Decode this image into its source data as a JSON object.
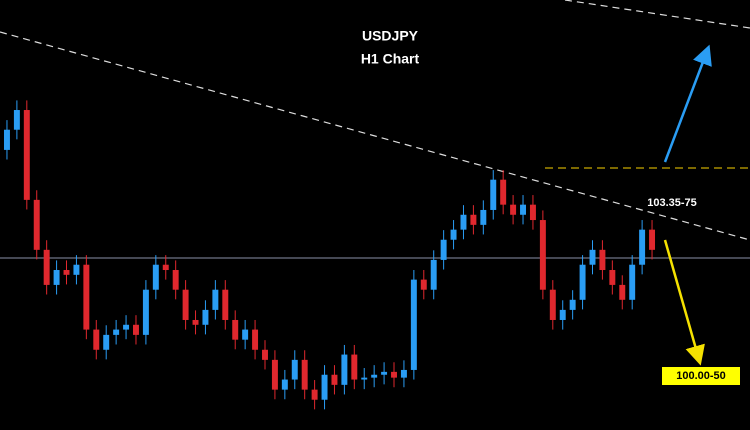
{
  "chart_data": {
    "type": "candlestick",
    "title": "USDJPY",
    "subtitle": "H1 Chart",
    "annotations": [
      "103.35-75",
      "100.00-50"
    ],
    "up_color": "#2a9df4",
    "down_color": "#e0282e",
    "ylim": [
      99.13,
      108.08
    ],
    "series": {
      "open": [
        104.96,
        105.38,
        105.79,
        103.92,
        102.88,
        102.15,
        102.46,
        102.36,
        102.57,
        101.22,
        100.8,
        101.11,
        101.22,
        101.32,
        101.11,
        102.05,
        102.57,
        102.46,
        102.05,
        101.42,
        101.32,
        101.63,
        102.05,
        101.42,
        101.01,
        101.22,
        100.8,
        100.59,
        99.97,
        100.18,
        100.59,
        99.97,
        99.76,
        100.28,
        100.07,
        100.7,
        100.18,
        100.22,
        100.28,
        100.34,
        100.22,
        100.38,
        102.26,
        102.05,
        102.67,
        103.09,
        103.3,
        103.61,
        103.4,
        103.71,
        104.34,
        103.82,
        103.61,
        103.82,
        103.5,
        102.05,
        101.42,
        101.63,
        101.84,
        102.57,
        102.88,
        102.46,
        102.15,
        101.84,
        102.57,
        103.3
      ],
      "high": [
        105.58,
        105.99,
        105.99,
        104.12,
        103.08,
        102.66,
        102.66,
        102.77,
        102.77,
        101.42,
        101.31,
        101.42,
        101.52,
        101.52,
        102.25,
        102.77,
        102.77,
        102.66,
        102.25,
        101.62,
        101.83,
        102.25,
        102.25,
        101.62,
        101.42,
        101.42,
        101.0,
        100.79,
        100.38,
        100.79,
        100.79,
        100.17,
        100.48,
        100.48,
        100.9,
        100.9,
        100.42,
        100.48,
        100.54,
        100.54,
        100.58,
        102.46,
        102.46,
        102.87,
        103.29,
        103.5,
        103.81,
        103.81,
        103.91,
        104.54,
        104.54,
        104.02,
        104.02,
        104.02,
        103.7,
        102.25,
        101.83,
        102.04,
        102.77,
        103.08,
        103.08,
        102.66,
        102.35,
        102.77,
        103.5,
        103.5
      ],
      "low": [
        104.76,
        105.18,
        103.72,
        102.68,
        101.95,
        101.95,
        102.16,
        102.16,
        101.02,
        100.6,
        100.6,
        100.91,
        101.02,
        100.91,
        100.91,
        101.85,
        102.26,
        101.85,
        101.22,
        101.12,
        101.12,
        101.43,
        101.22,
        100.81,
        100.81,
        100.6,
        100.39,
        99.77,
        99.77,
        99.98,
        99.77,
        99.56,
        99.56,
        99.87,
        99.87,
        99.98,
        99.98,
        100.02,
        100.08,
        100.02,
        100.02,
        100.18,
        101.85,
        101.85,
        102.47,
        102.89,
        103.1,
        103.2,
        103.2,
        103.51,
        103.62,
        103.41,
        103.41,
        103.3,
        101.85,
        101.22,
        101.22,
        101.43,
        101.64,
        102.37,
        102.26,
        101.95,
        101.64,
        101.64,
        102.37,
        102.68
      ],
      "close": [
        105.38,
        105.79,
        103.92,
        102.88,
        102.15,
        102.46,
        102.36,
        102.57,
        101.22,
        100.8,
        101.11,
        101.22,
        101.32,
        101.11,
        102.05,
        102.57,
        102.46,
        102.05,
        101.42,
        101.32,
        101.63,
        102.05,
        101.42,
        101.01,
        101.22,
        100.8,
        100.59,
        99.97,
        100.18,
        100.59,
        99.97,
        99.76,
        100.28,
        100.07,
        100.7,
        100.18,
        100.22,
        100.28,
        100.34,
        100.22,
        100.38,
        102.26,
        102.05,
        102.67,
        103.09,
        103.3,
        103.61,
        103.4,
        103.71,
        104.34,
        103.82,
        103.61,
        103.82,
        103.5,
        102.05,
        101.42,
        101.63,
        101.84,
        102.57,
        102.88,
        102.46,
        102.15,
        101.84,
        102.57,
        103.3,
        102.88
      ]
    }
  }
}
